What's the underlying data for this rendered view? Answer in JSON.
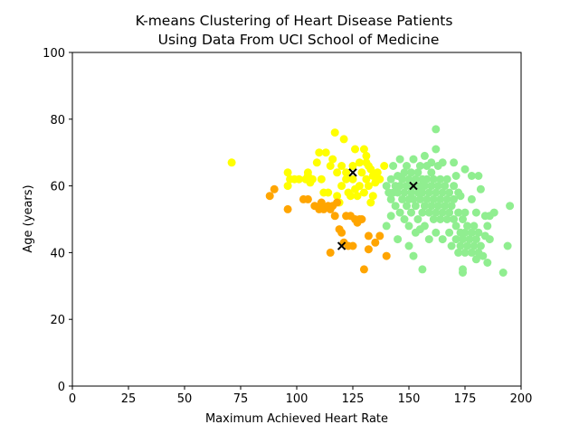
{
  "chart_data": {
    "type": "scatter",
    "title_lines": [
      "K-means Clustering of Heart Disease Patients",
      "Using Data From UCI School of Medicine"
    ],
    "xlabel": "Maximum Achieved Heart Rate",
    "ylabel": "Age (years)",
    "xlim": [
      0,
      200
    ],
    "ylim": [
      0,
      100
    ],
    "xticks": [
      0,
      25,
      50,
      75,
      100,
      125,
      150,
      175,
      200
    ],
    "yticks": [
      0,
      20,
      40,
      60,
      80,
      100
    ],
    "grid": false,
    "series": [
      {
        "color": "#ffff00",
        "points": [
          [
            71,
            67
          ],
          [
            96,
            64
          ],
          [
            97,
            62
          ],
          [
            99,
            62
          ],
          [
            101,
            62
          ],
          [
            104,
            62
          ],
          [
            105,
            63
          ],
          [
            105,
            64
          ],
          [
            107,
            62
          ],
          [
            109,
            67
          ],
          [
            110,
            70
          ],
          [
            112,
            58
          ],
          [
            113,
            70
          ],
          [
            114,
            58
          ],
          [
            115,
            66
          ],
          [
            116,
            68
          ],
          [
            117,
            76
          ],
          [
            118,
            57
          ],
          [
            119,
            55
          ],
          [
            120,
            66
          ],
          [
            121,
            74
          ],
          [
            122,
            64
          ],
          [
            123,
            58
          ],
          [
            124,
            57
          ],
          [
            125,
            62
          ],
          [
            126,
            71
          ],
          [
            126,
            59
          ],
          [
            127,
            57
          ],
          [
            128,
            67
          ],
          [
            129,
            64
          ],
          [
            130,
            71
          ],
          [
            130,
            58
          ],
          [
            131,
            67
          ],
          [
            131,
            62
          ],
          [
            132,
            66
          ],
          [
            132,
            60
          ],
          [
            133,
            65
          ],
          [
            133,
            55
          ],
          [
            134,
            63
          ],
          [
            134,
            57
          ],
          [
            135,
            61
          ],
          [
            136,
            64
          ],
          [
            137,
            62
          ],
          [
            139,
            66
          ],
          [
            125,
            66
          ],
          [
            128,
            60
          ],
          [
            111,
            62
          ],
          [
            120,
            60
          ],
          [
            122,
            62
          ],
          [
            131,
            69
          ],
          [
            96,
            60
          ],
          [
            106,
            61
          ],
          [
            118,
            64
          ]
        ]
      },
      {
        "color": "#ffa500",
        "points": [
          [
            88,
            57
          ],
          [
            90,
            59
          ],
          [
            96,
            53
          ],
          [
            103,
            56
          ],
          [
            105,
            56
          ],
          [
            108,
            54
          ],
          [
            110,
            53
          ],
          [
            111,
            55
          ],
          [
            112,
            53
          ],
          [
            114,
            54
          ],
          [
            115,
            53
          ],
          [
            116,
            54
          ],
          [
            118,
            55
          ],
          [
            117,
            51
          ],
          [
            119,
            47
          ],
          [
            120,
            46
          ],
          [
            122,
            51
          ],
          [
            123,
            42
          ],
          [
            124,
            51
          ],
          [
            125,
            42
          ],
          [
            126,
            50
          ],
          [
            127,
            49
          ],
          [
            128,
            50
          ],
          [
            129,
            50
          ],
          [
            115,
            40
          ],
          [
            121,
            43
          ],
          [
            130,
            35
          ],
          [
            132,
            41
          ],
          [
            132,
            45
          ],
          [
            135,
            43
          ],
          [
            137,
            45
          ],
          [
            140,
            39
          ]
        ]
      },
      {
        "color": "#90ee90",
        "points": [
          [
            140,
            60
          ],
          [
            141,
            58
          ],
          [
            142,
            56
          ],
          [
            142,
            62
          ],
          [
            143,
            58
          ],
          [
            143,
            66
          ],
          [
            144,
            60
          ],
          [
            144,
            54
          ],
          [
            145,
            58
          ],
          [
            145,
            63
          ],
          [
            146,
            52
          ],
          [
            146,
            60
          ],
          [
            146,
            68
          ],
          [
            147,
            56
          ],
          [
            147,
            62
          ],
          [
            148,
            58
          ],
          [
            148,
            64
          ],
          [
            148,
            50
          ],
          [
            149,
            54
          ],
          [
            149,
            60
          ],
          [
            149,
            66
          ],
          [
            150,
            56
          ],
          [
            150,
            62
          ],
          [
            150,
            48
          ],
          [
            151,
            58
          ],
          [
            151,
            64
          ],
          [
            151,
            52
          ],
          [
            152,
            56
          ],
          [
            152,
            60
          ],
          [
            152,
            68
          ],
          [
            153,
            54
          ],
          [
            153,
            62
          ],
          [
            153,
            46
          ],
          [
            154,
            58
          ],
          [
            154,
            64
          ],
          [
            154,
            50
          ],
          [
            155,
            56
          ],
          [
            155,
            60
          ],
          [
            155,
            66
          ],
          [
            156,
            52
          ],
          [
            156,
            58
          ],
          [
            156,
            62
          ],
          [
            157,
            54
          ],
          [
            157,
            60
          ],
          [
            157,
            48
          ],
          [
            158,
            56
          ],
          [
            158,
            62
          ],
          [
            158,
            66
          ],
          [
            159,
            52
          ],
          [
            159,
            58
          ],
          [
            159,
            44
          ],
          [
            160,
            54
          ],
          [
            160,
            60
          ],
          [
            160,
            64
          ],
          [
            161,
            50
          ],
          [
            161,
            56
          ],
          [
            161,
            62
          ],
          [
            162,
            58
          ],
          [
            162,
            52
          ],
          [
            162,
            46
          ],
          [
            163,
            54
          ],
          [
            163,
            60
          ],
          [
            163,
            66
          ],
          [
            164,
            50
          ],
          [
            164,
            56
          ],
          [
            164,
            62
          ],
          [
            165,
            52
          ],
          [
            165,
            58
          ],
          [
            165,
            44
          ],
          [
            166,
            54
          ],
          [
            166,
            60
          ],
          [
            167,
            50
          ],
          [
            167,
            56
          ],
          [
            167,
            62
          ],
          [
            168,
            46
          ],
          [
            168,
            52
          ],
          [
            168,
            58
          ],
          [
            169,
            54
          ],
          [
            169,
            42
          ],
          [
            170,
            50
          ],
          [
            170,
            56
          ],
          [
            170,
            60
          ],
          [
            171,
            44
          ],
          [
            171,
            48
          ],
          [
            171,
            63
          ],
          [
            172,
            52
          ],
          [
            172,
            58
          ],
          [
            172,
            40
          ],
          [
            173,
            46
          ],
          [
            173,
            42
          ],
          [
            173,
            57
          ],
          [
            174,
            44
          ],
          [
            174,
            50
          ],
          [
            175,
            40
          ],
          [
            175,
            46
          ],
          [
            175,
            52
          ],
          [
            176,
            42
          ],
          [
            176,
            48
          ],
          [
            177,
            44
          ],
          [
            178,
            40
          ],
          [
            178,
            46
          ],
          [
            178,
            56
          ],
          [
            179,
            42
          ],
          [
            179,
            48
          ],
          [
            180,
            38
          ],
          [
            180,
            44
          ],
          [
            180,
            52
          ],
          [
            181,
            40
          ],
          [
            181,
            46
          ],
          [
            182,
            42
          ],
          [
            182,
            59
          ],
          [
            183,
            39
          ],
          [
            184,
            51
          ],
          [
            184,
            45
          ],
          [
            185,
            48
          ],
          [
            185,
            37
          ],
          [
            186,
            44
          ],
          [
            186,
            51
          ],
          [
            188,
            52
          ],
          [
            192,
            34
          ],
          [
            194,
            42
          ],
          [
            195,
            54
          ],
          [
            162,
            77
          ],
          [
            162,
            71
          ],
          [
            165,
            67
          ],
          [
            170,
            67
          ],
          [
            175,
            65
          ],
          [
            178,
            63
          ],
          [
            156,
            35
          ],
          [
            150,
            42
          ],
          [
            152,
            39
          ],
          [
            155,
            47
          ],
          [
            145,
            44
          ],
          [
            140,
            48
          ],
          [
            142,
            51
          ],
          [
            174,
            35
          ],
          [
            174,
            34
          ],
          [
            181,
            63
          ],
          [
            157,
            69
          ],
          [
            160,
            67
          ]
        ]
      }
    ],
    "centroids": {
      "marker": "x",
      "color": "#000000",
      "points": [
        [
          125,
          64
        ],
        [
          120,
          42
        ],
        [
          152,
          60
        ]
      ]
    }
  }
}
